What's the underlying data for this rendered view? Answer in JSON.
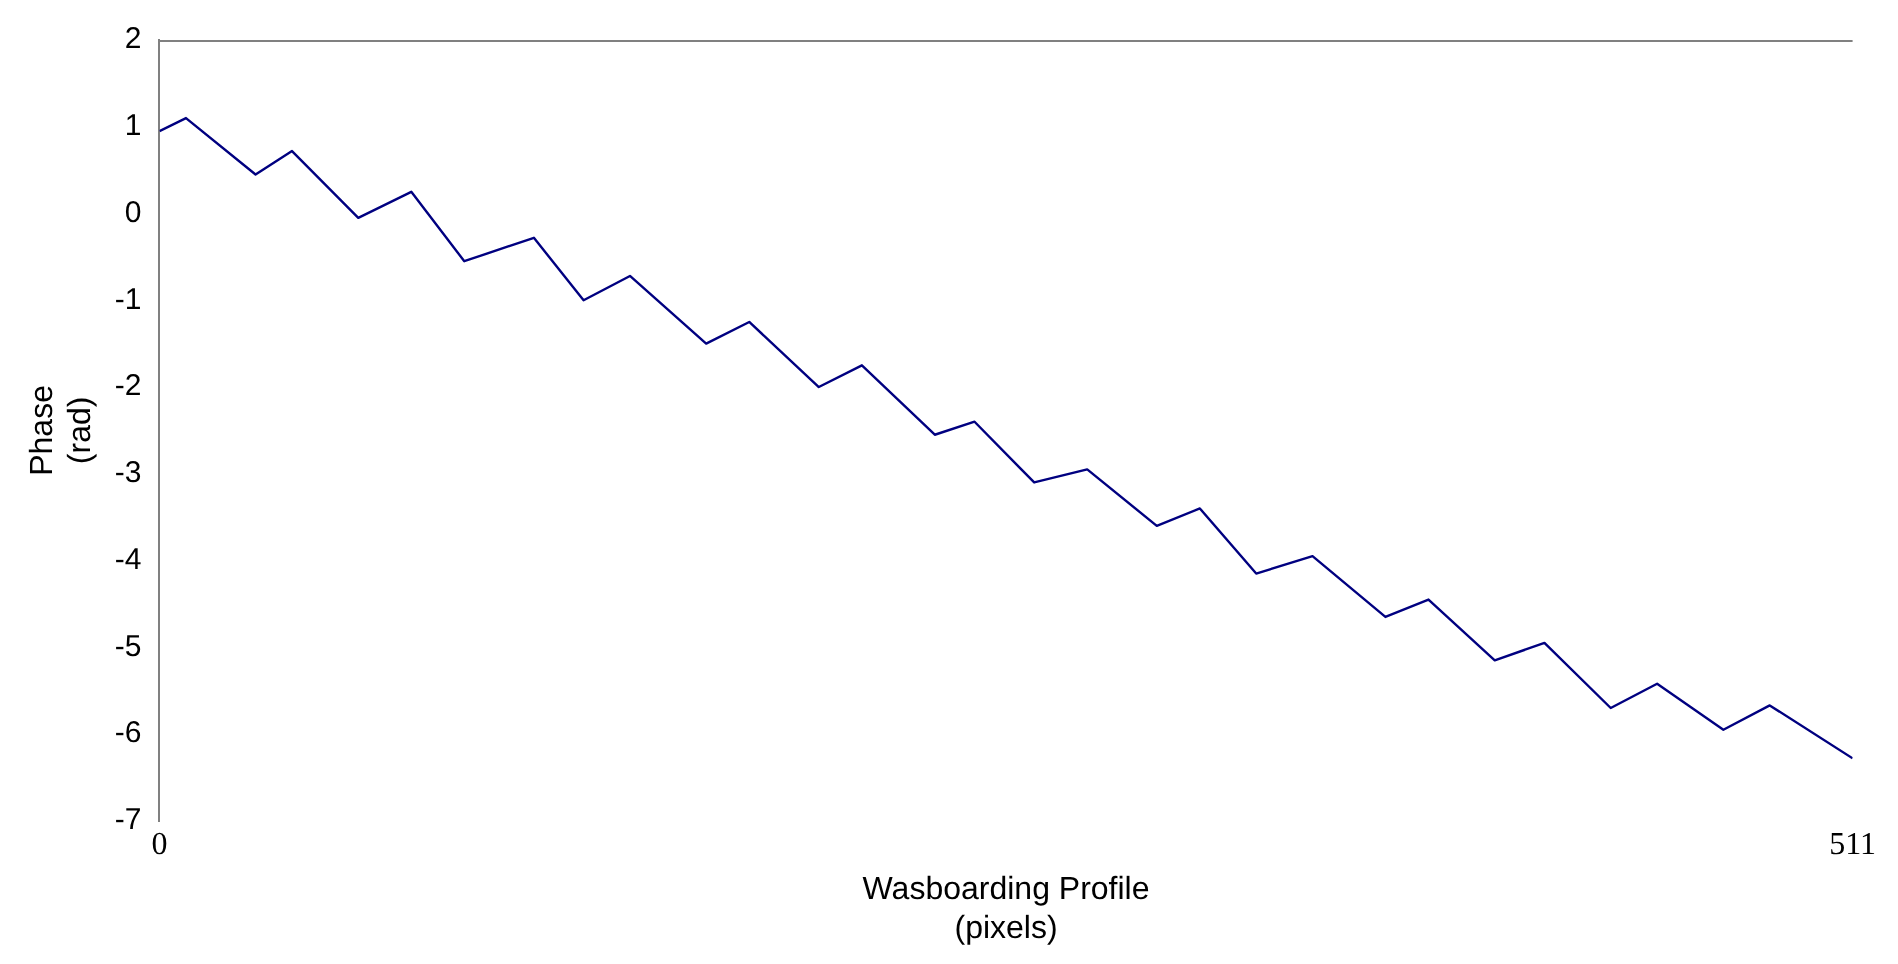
{
  "chart_data": {
    "type": "line",
    "xlabel": "Wasboarding Profile\n(pixels)",
    "ylabel": "Phase\n(rad)",
    "x": [
      0,
      8,
      29,
      40,
      60,
      76,
      92,
      113,
      128,
      142,
      165,
      178,
      199,
      212,
      234,
      246,
      264,
      280,
      301,
      314,
      331,
      348,
      370,
      383,
      403,
      418,
      438,
      452,
      472,
      486,
      511
    ],
    "series": [
      {
        "color": "#000080",
        "values": [
          0.95,
          1.1,
          0.45,
          0.72,
          -0.05,
          0.25,
          -0.55,
          -0.28,
          -1.0,
          -0.72,
          -1.5,
          -1.25,
          -2.0,
          -1.75,
          -2.55,
          -2.4,
          -3.1,
          -2.95,
          -3.6,
          -3.4,
          -4.15,
          -3.95,
          -4.65,
          -4.45,
          -5.15,
          -4.95,
          -5.7,
          -5.42,
          -5.95,
          -5.67,
          -6.28
        ]
      }
    ],
    "xlim": [
      0,
      511
    ],
    "xticks": [
      0,
      511
    ],
    "ylim": [
      -7,
      2
    ],
    "yticks": [
      -7,
      -6,
      -5,
      -4,
      -3,
      -2,
      -1,
      0,
      1,
      2
    ],
    "grid": false,
    "legend": false,
    "marker": "none",
    "line_style": "solid"
  }
}
